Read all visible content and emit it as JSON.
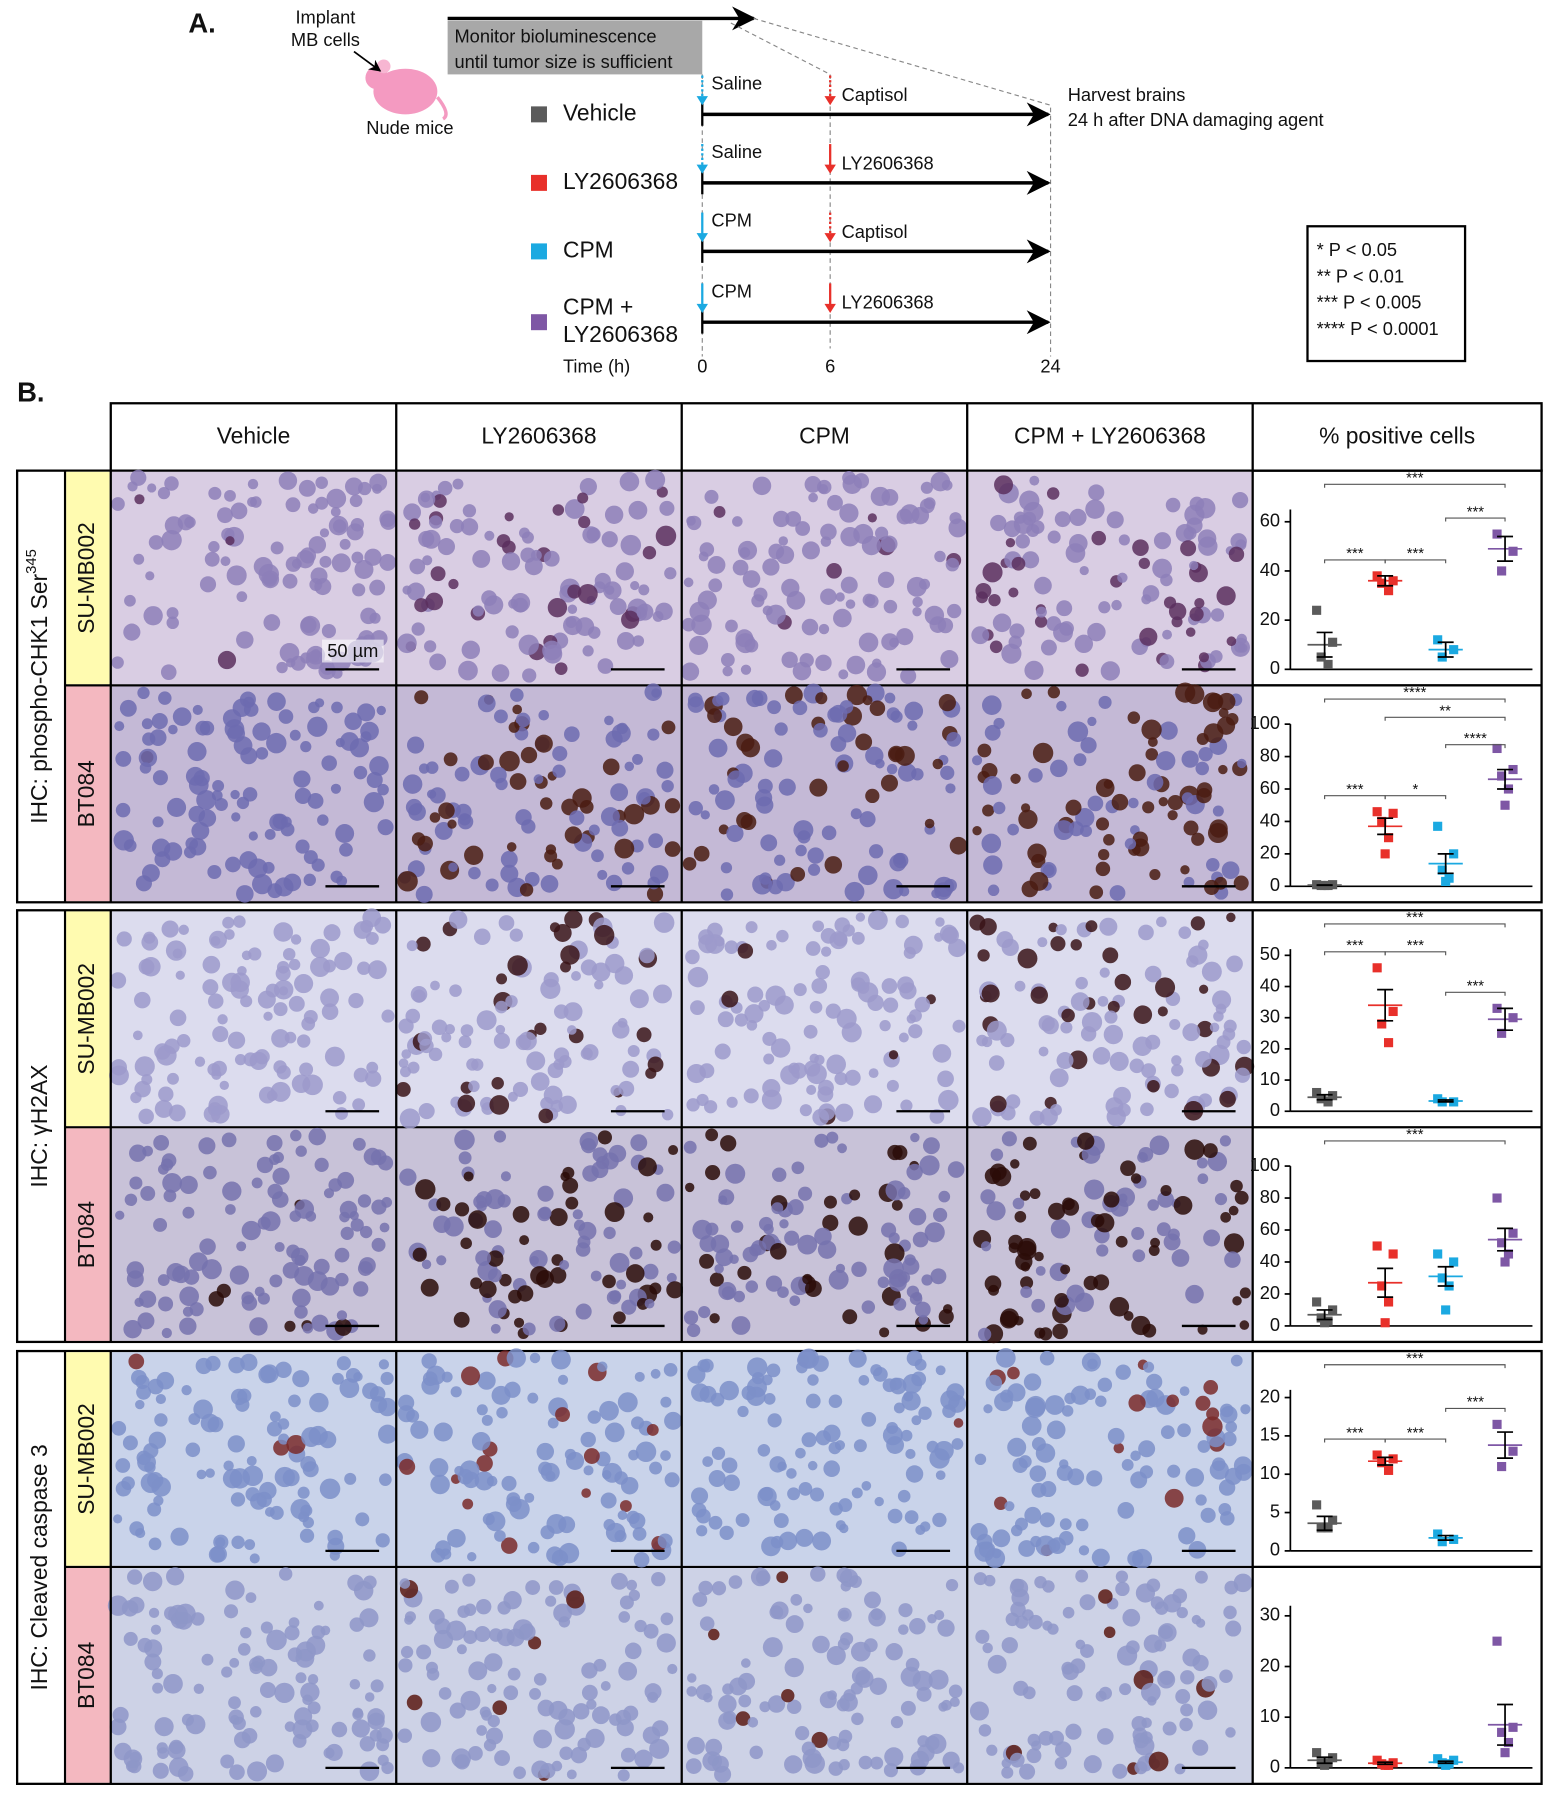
{
  "panel_a": {
    "label": "A.",
    "implant": [
      "Implant",
      "MB cells"
    ],
    "mice": "Nude mice",
    "monitor": [
      "Monitor bioluminescence",
      "until tumor size is sufficient"
    ],
    "harvest": [
      "Harvest brains",
      "24 h after DNA damaging agent"
    ],
    "rows": [
      {
        "label": [
          "Vehicle"
        ],
        "color": "#5b5b5b",
        "first": "Saline",
        "second": "Captisol"
      },
      {
        "label": [
          "LY2606368"
        ],
        "color": "#e8302a",
        "first": "Saline",
        "second": "LY2606368"
      },
      {
        "label": [
          "CPM"
        ],
        "color": "#1ba9e1",
        "first": "CPM",
        "second": "Captisol"
      },
      {
        "label": [
          "CPM +",
          "LY2606368"
        ],
        "color": "#7e57a5",
        "first": "CPM",
        "second": "LY2606368"
      }
    ],
    "time_label": "Time (h)",
    "time_ticks": [
      "0",
      "6",
      "24"
    ],
    "significance": [
      "* P < 0.05",
      "** P < 0.01",
      "*** P < 0.005",
      "**** P < 0.0001"
    ]
  },
  "panel_b": {
    "label": "B.",
    "columns": [
      "Vehicle",
      "LY2606368",
      "CPM",
      "CPM + LY2606368",
      "% positive cells"
    ],
    "stains": [
      {
        "label": "IHC: phospho-CHK1 Ser",
        "sup": "345"
      },
      {
        "label": "IHC: γH2AX"
      },
      {
        "label": "IHC: Cleaved caspase 3"
      }
    ],
    "cell_lines": [
      "SU-MB002",
      "BT084"
    ],
    "scale_bar": "50 µm",
    "group_colors": [
      "#5b5b5b",
      "#e8302a",
      "#1ba9e1",
      "#7e57a5"
    ],
    "plots": [
      {
        "ylim": [
          0,
          65
        ],
        "yticks": [
          0,
          20,
          40,
          60
        ],
        "groups": [
          {
            "points": [
              24,
              11,
              5,
              2
            ],
            "mean": 10,
            "sem": 5
          },
          {
            "points": [
              38,
              36,
              35,
              32
            ],
            "mean": 36,
            "sem": 2
          },
          {
            "points": [
              12,
              8,
              5
            ],
            "mean": 8,
            "sem": 3
          },
          {
            "points": [
              55,
              48,
              40
            ],
            "mean": 49,
            "sem": 5
          }
        ],
        "brackets": [
          {
            "from": 0,
            "to": 1,
            "label": "***"
          },
          {
            "from": 1,
            "to": 2,
            "label": "***"
          },
          {
            "from": 2,
            "to": 3,
            "label": "***"
          },
          {
            "from": 0,
            "to": 3,
            "label": "***"
          }
        ]
      },
      {
        "ylim": [
          0,
          100
        ],
        "yticks": [
          0,
          20,
          40,
          60,
          80,
          100
        ],
        "groups": [
          {
            "points": [
              1,
              1,
              0.5,
              0.5,
              0.5
            ],
            "mean": 0.7,
            "sem": 0.1
          },
          {
            "points": [
              46,
              45,
              40,
              30,
              20
            ],
            "mean": 37,
            "sem": 5
          },
          {
            "points": [
              37,
              20,
              10,
              5,
              3
            ],
            "mean": 14,
            "sem": 6
          },
          {
            "points": [
              85,
              72,
              68,
              60,
              50
            ],
            "mean": 66,
            "sem": 6
          }
        ],
        "brackets": [
          {
            "from": 0,
            "to": 1,
            "label": "***"
          },
          {
            "from": 1,
            "to": 2,
            "label": "*"
          },
          {
            "from": 2,
            "to": 3,
            "label": "****"
          },
          {
            "from": 1,
            "to": 3,
            "label": "**"
          },
          {
            "from": 0,
            "to": 3,
            "label": "****"
          }
        ]
      },
      {
        "ylim": [
          0,
          52
        ],
        "yticks": [
          0,
          10,
          20,
          30,
          40,
          50
        ],
        "groups": [
          {
            "points": [
              6,
              5,
              4,
              3
            ],
            "mean": 4.5,
            "sem": 0.8
          },
          {
            "points": [
              46,
              32,
              28,
              22
            ],
            "mean": 34,
            "sem": 5
          },
          {
            "points": [
              4,
              3,
              3
            ],
            "mean": 3.3,
            "sem": 0.3
          },
          {
            "points": [
              33,
              30,
              25
            ],
            "mean": 29.5,
            "sem": 3.5
          }
        ],
        "brackets": [
          {
            "from": 0,
            "to": 1,
            "label": "***"
          },
          {
            "from": 1,
            "to": 2,
            "label": "***"
          },
          {
            "from": 2,
            "to": 3,
            "label": "***"
          },
          {
            "from": 0,
            "to": 3,
            "label": "***"
          }
        ]
      },
      {
        "ylim": [
          0,
          100
        ],
        "yticks": [
          0,
          20,
          40,
          60,
          80,
          100
        ],
        "groups": [
          {
            "points": [
              15,
              10,
              5,
              3,
              2
            ],
            "mean": 7,
            "sem": 3
          },
          {
            "points": [
              50,
              45,
              25,
              15,
              2
            ],
            "mean": 27,
            "sem": 9
          },
          {
            "points": [
              45,
              40,
              30,
              25,
              10
            ],
            "mean": 31,
            "sem": 6
          },
          {
            "points": [
              80,
              58,
              52,
              45,
              40
            ],
            "mean": 54,
            "sem": 7
          }
        ],
        "brackets": [
          {
            "from": 0,
            "to": 3,
            "label": "***"
          }
        ]
      },
      {
        "ylim": [
          0,
          21
        ],
        "yticks": [
          0,
          5,
          10,
          15,
          20
        ],
        "groups": [
          {
            "points": [
              6,
              4,
              3,
              3
            ],
            "mean": 3.6,
            "sem": 0.9
          },
          {
            "points": [
              12.5,
              12,
              11.5,
              10.5
            ],
            "mean": 11.7,
            "sem": 0.5
          },
          {
            "points": [
              2.2,
              1.5,
              1.2
            ],
            "mean": 1.7,
            "sem": 0.3
          },
          {
            "points": [
              16.5,
              13,
              11
            ],
            "mean": 13.8,
            "sem": 1.7
          }
        ],
        "brackets": [
          {
            "from": 0,
            "to": 1,
            "label": "***"
          },
          {
            "from": 1,
            "to": 2,
            "label": "***"
          },
          {
            "from": 2,
            "to": 3,
            "label": "***"
          },
          {
            "from": 0,
            "to": 3,
            "label": "***"
          }
        ]
      },
      {
        "ylim": [
          0,
          32
        ],
        "yticks": [
          0,
          10,
          20,
          30
        ],
        "groups": [
          {
            "points": [
              3,
              2,
              1,
              1,
              0.5
            ],
            "mean": 1.5,
            "sem": 0.6
          },
          {
            "points": [
              1.5,
              1,
              0.8,
              0.5,
              0.5
            ],
            "mean": 0.9,
            "sem": 0.2
          },
          {
            "points": [
              1.8,
              1.5,
              1,
              0.8,
              0.5
            ],
            "mean": 1.1,
            "sem": 0.2
          },
          {
            "points": [
              25,
              8,
              7,
              5,
              3
            ],
            "mean": 8.5,
            "sem": 4
          }
        ],
        "brackets": []
      }
    ]
  }
}
